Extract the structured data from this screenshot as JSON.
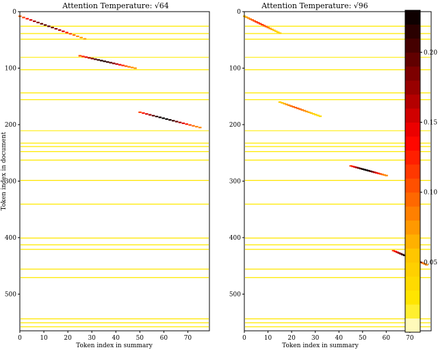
{
  "figure": {
    "colorbar": {
      "colormap": "hot_r",
      "range": [
        0,
        0.23
      ],
      "ticks": [
        0.05,
        0.1,
        0.15,
        0.2
      ],
      "tick_labels": [
        "0.05",
        "0.10",
        "0.15",
        "0.20"
      ],
      "steps": 23
    }
  },
  "chart_data": [
    {
      "type": "heatmap",
      "title": "Attention Temperature: √64",
      "xlabel": "Token index in summary",
      "ylabel": "Token index in document",
      "xlim": [
        0,
        79
      ],
      "ylim": [
        565,
        0
      ],
      "xticks": [
        0,
        10,
        20,
        30,
        40,
        50,
        60,
        70
      ],
      "yticks": [
        0,
        100,
        200,
        300,
        400,
        500
      ],
      "horizontal_bands": [
        {
          "y": 25,
          "value": 0.02
        },
        {
          "y": 38,
          "value": 0.02
        },
        {
          "y": 48,
          "value": 0.02
        },
        {
          "y": 80,
          "value": 0.015
        },
        {
          "y": 102,
          "value": 0.02
        },
        {
          "y": 143,
          "value": 0.02
        },
        {
          "y": 155,
          "value": 0.02
        },
        {
          "y": 210,
          "value": 0.015
        },
        {
          "y": 232,
          "value": 0.02
        },
        {
          "y": 238,
          "value": 0.02
        },
        {
          "y": 247,
          "value": 0.02
        },
        {
          "y": 262,
          "value": 0.02
        },
        {
          "y": 298,
          "value": 0.025
        },
        {
          "y": 340,
          "value": 0.02
        },
        {
          "y": 400,
          "value": 0.025
        },
        {
          "y": 412,
          "value": 0.02
        },
        {
          "y": 420,
          "value": 0.02
        },
        {
          "y": 455,
          "value": 0.025
        },
        {
          "y": 470,
          "value": 0.02
        },
        {
          "y": 543,
          "value": 0.025
        },
        {
          "y": 550,
          "value": 0.02
        },
        {
          "y": 557,
          "value": 0.02
        }
      ],
      "diagonal_segments": [
        {
          "x0": 0,
          "y0": 8,
          "x1": 27,
          "y1": 48,
          "peak": 0.2
        },
        {
          "x0": 25,
          "y0": 78,
          "x1": 48,
          "y1": 100,
          "peak": 0.22
        },
        {
          "x0": 50,
          "y0": 178,
          "x1": 75,
          "y1": 205,
          "peak": 0.23
        }
      ]
    },
    {
      "type": "heatmap",
      "title": "Attention Temperature: √96",
      "xlabel": "Token index in summary",
      "ylabel": "",
      "xlim": [
        0,
        79
      ],
      "ylim": [
        565,
        0
      ],
      "xticks": [
        0,
        10,
        20,
        30,
        40,
        50,
        60,
        70
      ],
      "yticks": [
        0,
        100,
        200,
        300,
        400,
        500
      ],
      "horizontal_bands": [
        {
          "y": 25,
          "value": 0.02
        },
        {
          "y": 38,
          "value": 0.02
        },
        {
          "y": 48,
          "value": 0.02
        },
        {
          "y": 80,
          "value": 0.015
        },
        {
          "y": 102,
          "value": 0.02
        },
        {
          "y": 143,
          "value": 0.02
        },
        {
          "y": 155,
          "value": 0.02
        },
        {
          "y": 210,
          "value": 0.015
        },
        {
          "y": 232,
          "value": 0.02
        },
        {
          "y": 238,
          "value": 0.02
        },
        {
          "y": 247,
          "value": 0.02
        },
        {
          "y": 262,
          "value": 0.02
        },
        {
          "y": 298,
          "value": 0.025
        },
        {
          "y": 340,
          "value": 0.02
        },
        {
          "y": 400,
          "value": 0.025
        },
        {
          "y": 412,
          "value": 0.02
        },
        {
          "y": 420,
          "value": 0.02
        },
        {
          "y": 455,
          "value": 0.025
        },
        {
          "y": 470,
          "value": 0.02
        },
        {
          "y": 543,
          "value": 0.025
        },
        {
          "y": 550,
          "value": 0.02
        },
        {
          "y": 557,
          "value": 0.02
        }
      ],
      "diagonal_segments": [
        {
          "x0": 0,
          "y0": 8,
          "x1": 15,
          "y1": 38,
          "peak": 0.12
        },
        {
          "x0": 15,
          "y0": 160,
          "x1": 32,
          "y1": 185,
          "peak": 0.1
        },
        {
          "x0": 45,
          "y0": 273,
          "x1": 60,
          "y1": 290,
          "peak": 0.23
        },
        {
          "x0": 63,
          "y0": 423,
          "x1": 77,
          "y1": 448,
          "peak": 0.23
        }
      ]
    }
  ]
}
